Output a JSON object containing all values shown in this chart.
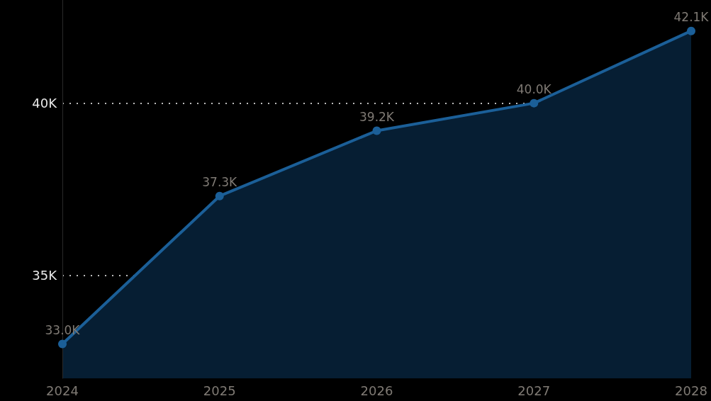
{
  "chart_data": {
    "type": "area",
    "categories": [
      "2024",
      "2025",
      "2026",
      "2027",
      "2028"
    ],
    "series": [
      {
        "color": "#1b5f98",
        "values": [
          33000,
          37300,
          39200,
          40000,
          42100
        ],
        "value_labels": [
          "33.0K",
          "37.3K",
          "39.2K",
          "40.0K",
          "42.1K"
        ]
      }
    ],
    "ylim": [
      32000,
      43000
    ],
    "yticks": [
      {
        "value": 35000,
        "label": "35K"
      },
      {
        "value": 40000,
        "label": "40K"
      }
    ],
    "grid": "y",
    "marker": "circle"
  }
}
